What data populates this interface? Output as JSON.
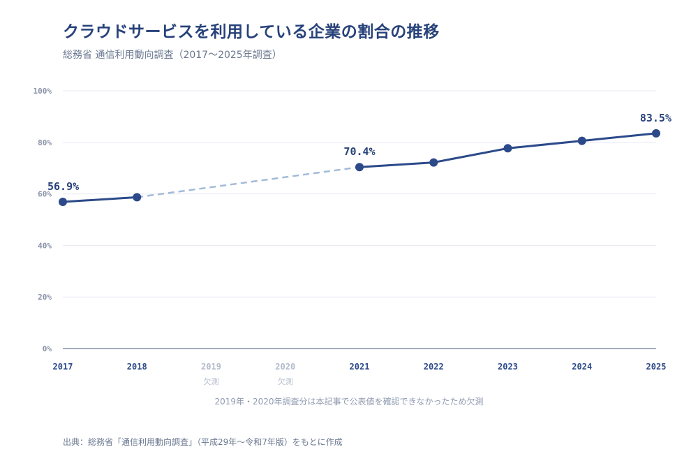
{
  "chart_data": {
    "type": "line",
    "title": "クラウドサービスを利用している企業の割合の推移",
    "subtitle": "総務省 通信利用動向調査（2017〜2025年調査）",
    "categories": [
      "2017",
      "2018",
      "2019",
      "2020",
      "2021",
      "2022",
      "2023",
      "2024",
      "2025"
    ],
    "missing_label": "欠測",
    "values": [
      56.9,
      58.7,
      null,
      null,
      70.4,
      72.2,
      77.7,
      80.6,
      83.5
    ],
    "data_labels": {
      "2017": "56.9%",
      "2021": "70.4%",
      "2025": "83.5%"
    },
    "ylim": [
      0,
      100
    ],
    "yticks": [
      "0%",
      "20%",
      "40%",
      "60%",
      "80%",
      "100%"
    ],
    "ytick_values": [
      0,
      20,
      40,
      60,
      80,
      100
    ],
    "grid": true,
    "colors": {
      "line": "#2c4a8a",
      "gap": "#a3bad8",
      "grid": "#e6eaf2",
      "axis": "#6b7a94",
      "missing_tick": "#b3bbcb",
      "tick": "#2c4a8a"
    },
    "note": "2019年・2020年調査分は本記事で公表値を確認できなかったため欠測"
  },
  "source": "出典：総務省「通信利用動向調査」（平成29年〜令和7年版）をもとに作成"
}
